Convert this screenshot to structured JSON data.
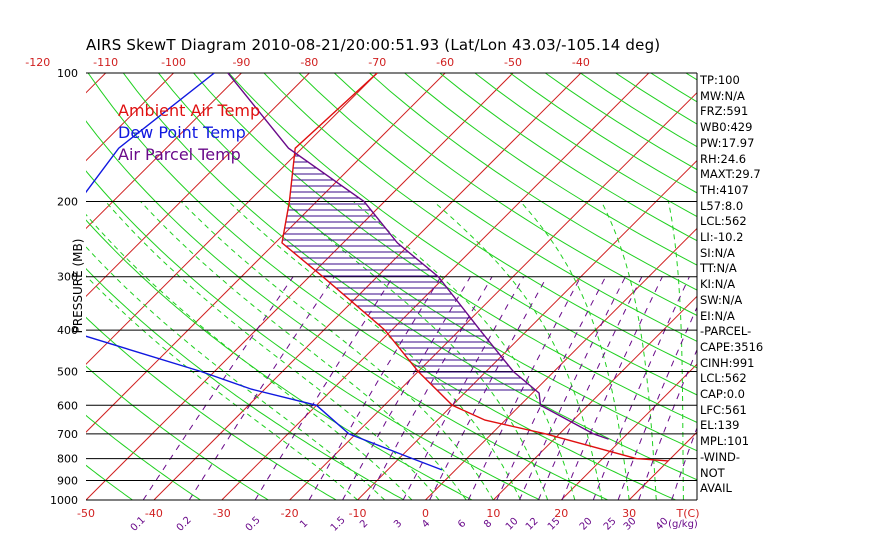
{
  "title": "AIRS SkewT Diagram 2010-08-21/20:00:51.93 (Lat/Lon 43.03/-105.14 deg)",
  "colors": {
    "ambient": "#e01010",
    "dewpoint": "#1018e0",
    "parcel": "#6a0a8a",
    "isotherm": "#d02020",
    "dry_adiabat": "#20d020",
    "moist_adiabat": "#20d020",
    "mixing_ratio": "#6a0a8a",
    "cape_hatch": "#3a0a8a",
    "isobar": "#000000"
  },
  "legend": [
    {
      "label": "Ambient Air Temp",
      "color": "#e01010"
    },
    {
      "label": "Dew Point Temp",
      "color": "#1018e0"
    },
    {
      "label": "Air Parcel Temp",
      "color": "#6a0a8a"
    }
  ],
  "indices": [
    "TP:100",
    "MW:N/A",
    "FRZ:591",
    "WB0:429",
    "PW:17.97",
    "RH:24.6",
    "MAXT:29.7",
    "TH:4107",
    "L57:8.0",
    "LCL:562",
    "LI:-10.2",
    "SI:N/A",
    "TT:N/A",
    "KI:N/A",
    "SW:N/A",
    "EI:N/A",
    "-PARCEL-",
    "CAPE:3516",
    "CINH:991",
    "LCL:562",
    "CAP:0.0",
    "LFC:561",
    "EL:139",
    "MPL:101",
    "-WIND-",
    "NOT",
    "AVAIL"
  ],
  "chart_data": {
    "type": "line",
    "title": "AIRS SkewT Diagram 2010-08-21/20:00:51.93 (Lat/Lon 43.03/-105.14 deg)",
    "ylabel": "PRESSURE (MB)",
    "xlabel": "T(C)",
    "y_scale": "log",
    "ylim": [
      1000,
      100
    ],
    "pressure_ticks": [
      100,
      200,
      300,
      400,
      500,
      600,
      700,
      800,
      900,
      1000
    ],
    "bottom_temp_ticks": [
      -50,
      -40,
      -30,
      -20,
      -10,
      0,
      10,
      20,
      30
    ],
    "top_temp_ticks": [
      -120,
      -110,
      -100,
      -90,
      -80,
      -70,
      -60,
      -50,
      -40
    ],
    "mixing_ratio_labels": [
      "0.1",
      "0.2",
      "0.5",
      "1",
      "1.5",
      "2",
      "3",
      "4",
      "6",
      "8",
      "10",
      "12",
      "15",
      "20",
      "25",
      "30",
      "40"
    ],
    "mixing_ratio_unit": "(g/kg)",
    "series": [
      {
        "name": "Ambient Air Temp",
        "points": [
          [
            100,
            -70
          ],
          [
            150,
            -71
          ],
          [
            200,
            -64
          ],
          [
            250,
            -59
          ],
          [
            300,
            -48
          ],
          [
            400,
            -31
          ],
          [
            500,
            -20
          ],
          [
            600,
            -10
          ],
          [
            650,
            -3
          ],
          [
            700,
            8
          ],
          [
            800,
            25
          ],
          [
            810,
            30
          ]
        ]
      },
      {
        "name": "Dew Point Temp",
        "points": [
          [
            100,
            -94
          ],
          [
            150,
            -97
          ],
          [
            200,
            -95
          ],
          [
            250,
            -90
          ],
          [
            300,
            -85
          ],
          [
            400,
            -78
          ],
          [
            500,
            -52
          ],
          [
            550,
            -42
          ],
          [
            600,
            -30
          ],
          [
            700,
            -21
          ],
          [
            800,
            -8
          ],
          [
            850,
            -2
          ]
        ]
      },
      {
        "name": "Air Parcel Temp",
        "points": [
          [
            100,
            -92
          ],
          [
            150,
            -72
          ],
          [
            200,
            -53
          ],
          [
            250,
            -42
          ],
          [
            300,
            -31
          ],
          [
            400,
            -17
          ],
          [
            500,
            -6
          ],
          [
            562,
            1
          ],
          [
            600,
            3
          ],
          [
            700,
            15
          ],
          [
            720,
            18
          ]
        ]
      }
    ]
  }
}
